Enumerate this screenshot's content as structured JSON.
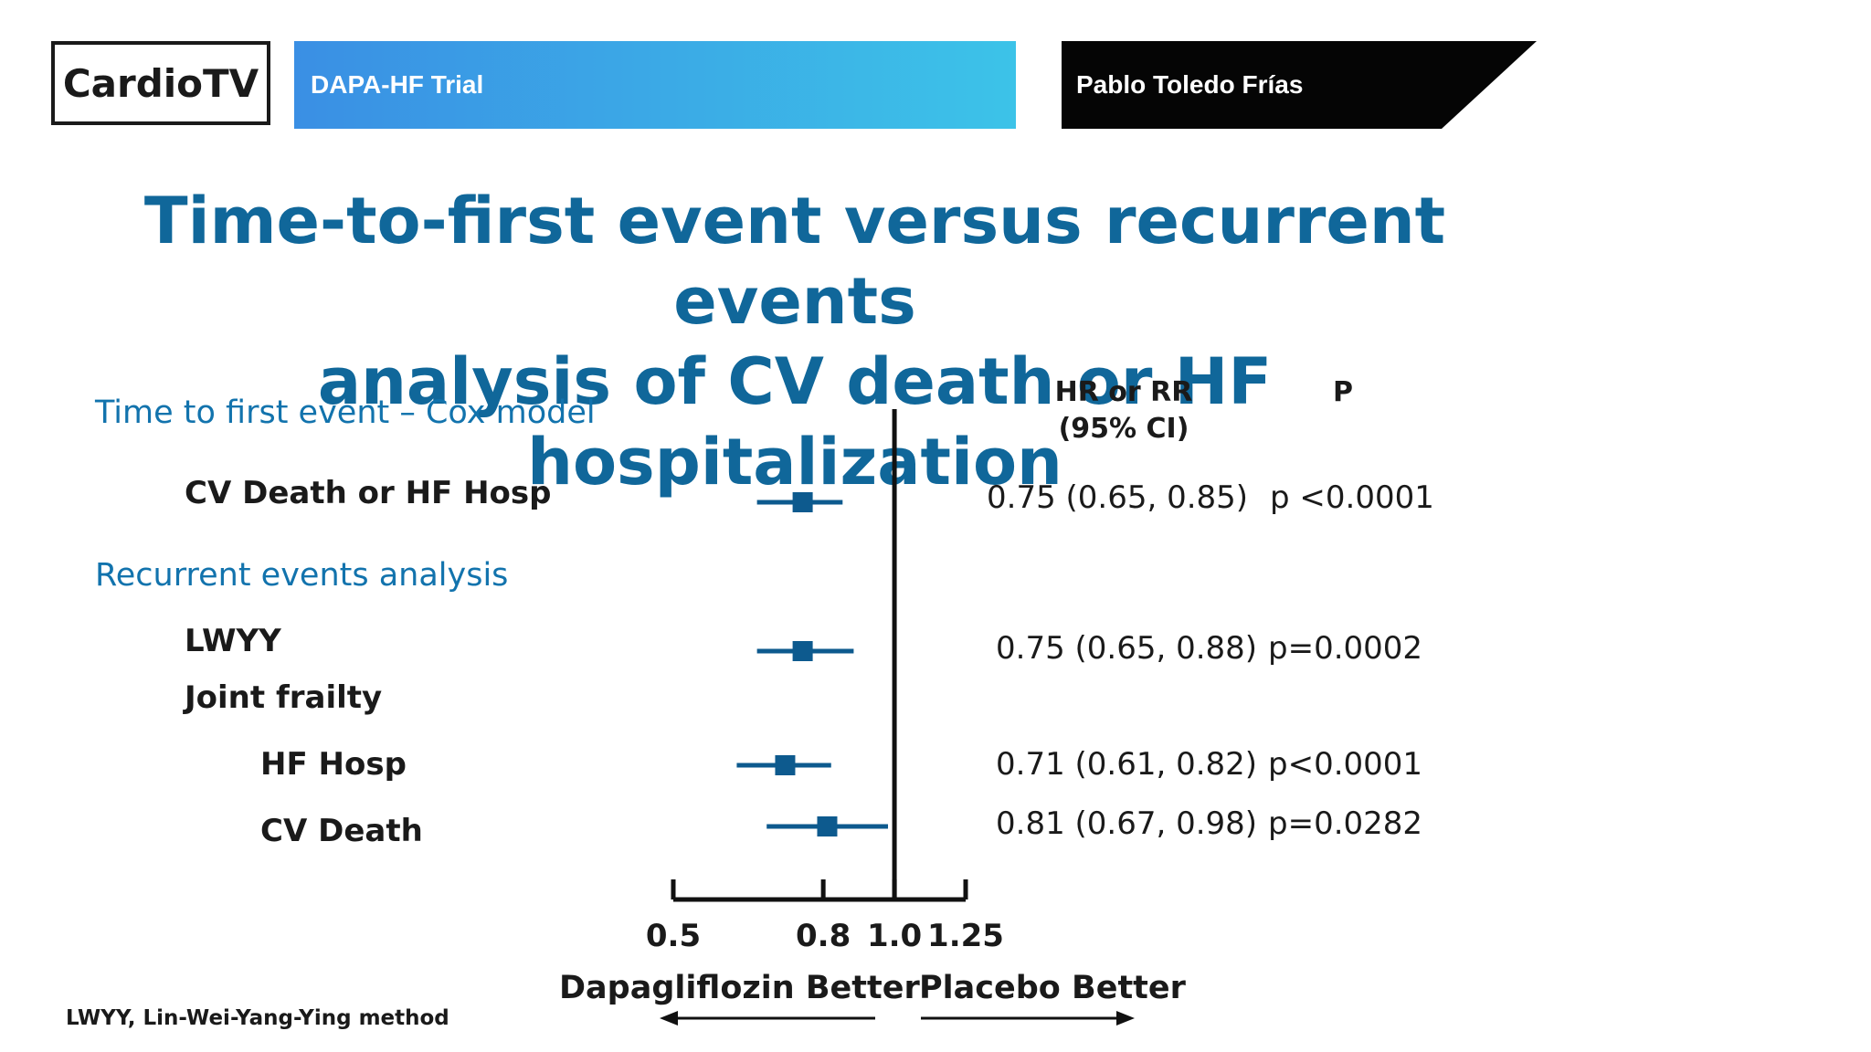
{
  "header": {
    "brand": "CardioTV",
    "topic": "DAPA-HF Trial",
    "speaker": "Pablo Toledo Frías"
  },
  "slide_title": "Time-to-first event versus recurrent events\nanalysis of CV death or HF hospitalization",
  "table_headers": {
    "estimate": "HR or RR\n(95% CI)",
    "p": "P"
  },
  "sections": [
    {
      "label": "Time to first event – Cox model"
    },
    {
      "label": "Recurrent events analysis"
    }
  ],
  "joint_frailty_label": "Joint frailty",
  "colors": {
    "title": "#10679a",
    "section": "#1273ad",
    "marker": "#0d5a8e",
    "axis": "#111111"
  },
  "chart_data": {
    "type": "forest",
    "x_scale": "log",
    "xlim": [
      0.5,
      1.25
    ],
    "ticks": [
      "0.5",
      "0.8",
      "1.0",
      "1.25"
    ],
    "tick_values": [
      0.5,
      0.8,
      1.0,
      1.25
    ],
    "reference_line": 1.0,
    "rows": [
      {
        "label": "CV Death or HF Hosp",
        "hr": 0.75,
        "lo": 0.65,
        "hi": 0.85,
        "ci_text": "0.75 (0.65, 0.85)",
        "p_text": "p <0.0001"
      },
      {
        "label": "LWYY",
        "hr": 0.75,
        "lo": 0.65,
        "hi": 0.88,
        "ci_text": "0.75 (0.65, 0.88)",
        "p_text": "p=0.0002"
      },
      {
        "label": "HF Hosp",
        "hr": 0.71,
        "lo": 0.61,
        "hi": 0.82,
        "ci_text": "0.71 (0.61, 0.82)",
        "p_text": "p<0.0001"
      },
      {
        "label": "CV Death",
        "hr": 0.81,
        "lo": 0.67,
        "hi": 0.98,
        "ci_text": "0.81 (0.67, 0.98)",
        "p_text": "p=0.0282"
      }
    ],
    "left_direction": "Dapagliflozin Better",
    "right_direction": "Placebo Better"
  },
  "footnote": "LWYY,  Lin-Wei-Yang-Ying method"
}
